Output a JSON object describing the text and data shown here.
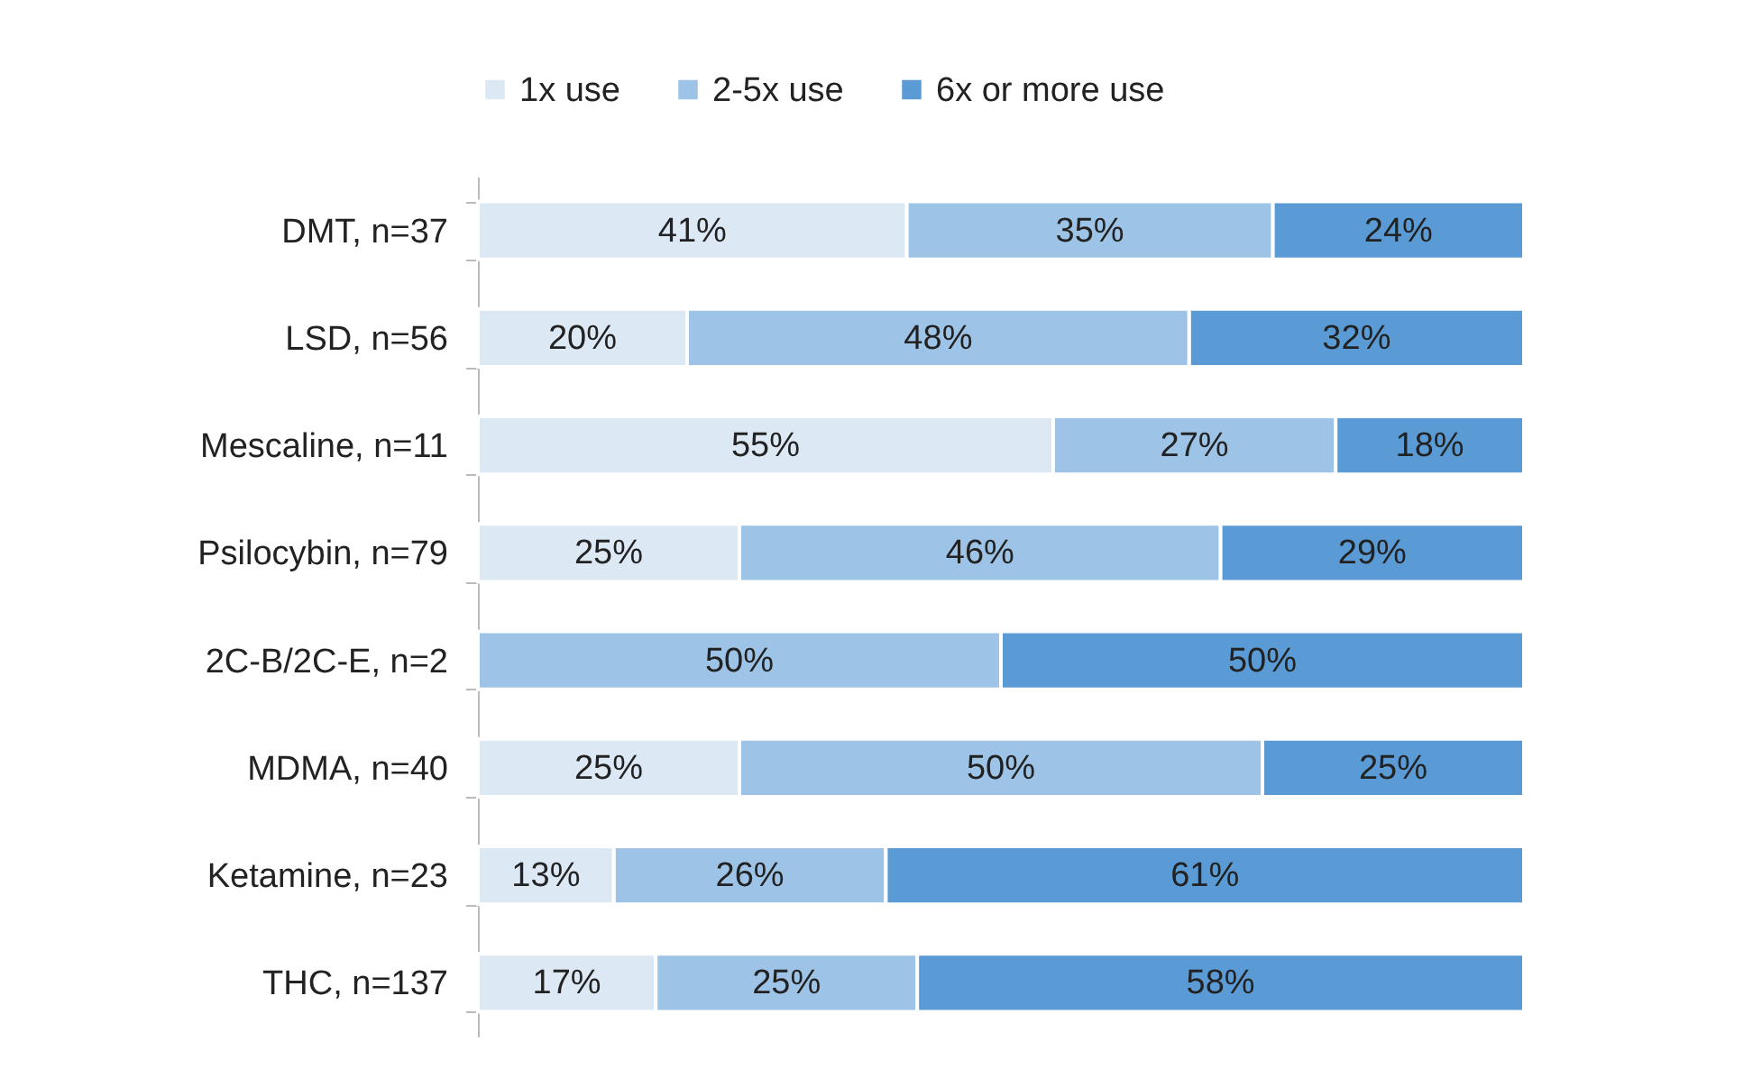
{
  "chart_data": {
    "type": "bar",
    "orientation": "horizontal",
    "stacked": true,
    "legend": "top",
    "categories": [
      "DMT, n=37",
      "LSD, n=56",
      "Mescaline, n=11",
      "Psilocybin, n=79",
      "2C-B/2C-E, n=2",
      "MDMA, n=40",
      "Ketamine, n=23",
      "THC, n=137"
    ],
    "series": [
      {
        "name": "1x use",
        "color": "#dde8f5",
        "values": [
          41,
          20,
          55,
          25,
          null,
          25,
          13,
          17
        ],
        "value_labels": [
          "41%",
          "20%",
          "55%",
          "25%",
          null,
          "25%",
          "13%",
          "17%"
        ]
      },
      {
        "name": "2-5x use",
        "color": "#9dc3e6",
        "values": [
          35,
          48,
          27,
          46,
          50,
          50,
          26,
          25
        ],
        "value_labels": [
          "35%",
          "48%",
          "27%",
          "46%",
          "50%",
          "50%",
          "26%",
          "25%"
        ]
      },
      {
        "name": "6x or more use",
        "color": "#5b9bd5",
        "values": [
          24,
          32,
          18,
          29,
          50,
          25,
          61,
          58
        ],
        "value_labels": [
          "24%",
          "32%",
          "18%",
          "29%",
          "50%",
          "25%",
          "61%",
          "58%"
        ]
      }
    ]
  }
}
